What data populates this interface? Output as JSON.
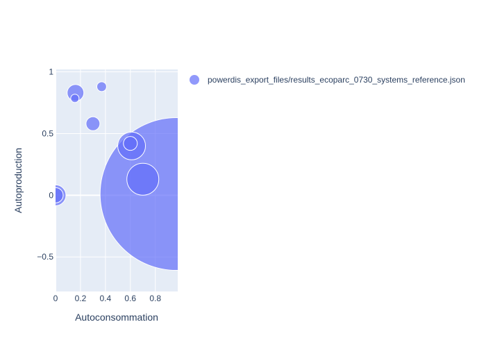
{
  "chart_data": {
    "type": "scatter",
    "title": "",
    "xlabel": "Autoconsommation",
    "ylabel": "Autoproduction",
    "xlim": [
      0,
      0.98
    ],
    "ylim": [
      -0.78,
      1.02
    ],
    "xticks": [
      0,
      0.2,
      0.4,
      0.6,
      0.8
    ],
    "xtick_labels": [
      "0",
      "0.2",
      "0.4",
      "0.6",
      "0.8"
    ],
    "yticks": [
      -0.5,
      0,
      0.5,
      1
    ],
    "ytick_labels": [
      "−0.5",
      "0",
      "0.5",
      "1"
    ],
    "grid": true,
    "legend_position": "top-right",
    "colors": {
      "marker": "#636efa",
      "plot_bg": "#e5ecf6",
      "grid": "#ffffff",
      "text": "#2a3f5f"
    },
    "series": [
      {
        "name": "powerdis_export_files/results_ecoparc_0730_systems_reference.json",
        "points": [
          {
            "x": 0.97,
            "y": 0.01,
            "size": 110
          },
          {
            "x": 0.7,
            "y": 0.13,
            "size": 23
          },
          {
            "x": 0.61,
            "y": 0.4,
            "size": 20
          },
          {
            "x": 0.6,
            "y": 0.42,
            "size": 10
          },
          {
            "x": 0.0,
            "y": 0.0,
            "size": 15
          },
          {
            "x": 0.0,
            "y": 0.0,
            "size": 11
          },
          {
            "x": 0.16,
            "y": 0.83,
            "size": 12
          },
          {
            "x": 0.155,
            "y": 0.785,
            "size": 6
          },
          {
            "x": 0.3,
            "y": 0.58,
            "size": 10
          },
          {
            "x": 0.37,
            "y": 0.88,
            "size": 7
          }
        ]
      }
    ]
  }
}
